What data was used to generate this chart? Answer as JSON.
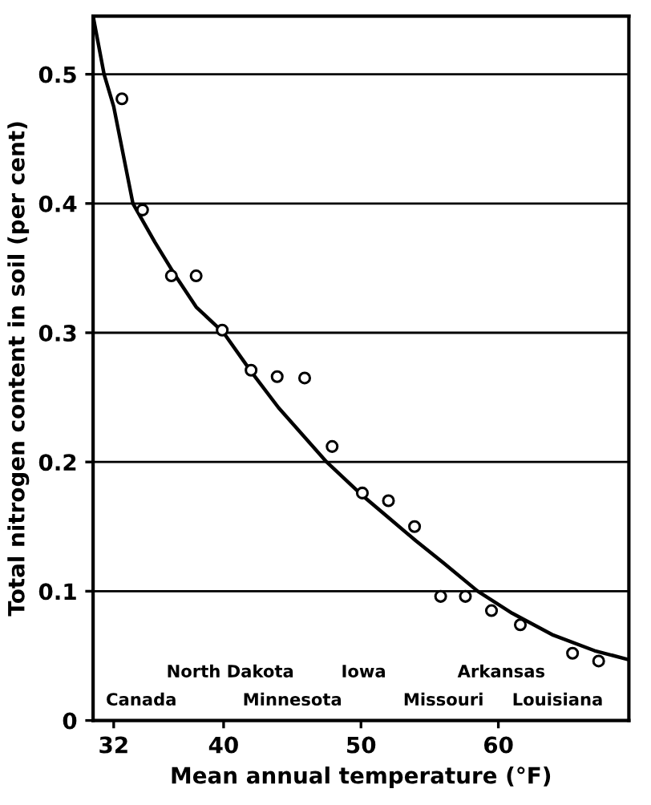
{
  "chart_data": {
    "type": "scatter",
    "xlabel": "Mean annual temperature (°F)",
    "ylabel": "Total nitrogen content in soil (per cent)",
    "xlim": [
      30.5,
      69.5
    ],
    "ylim": [
      0,
      0.545
    ],
    "xticks": [
      32,
      40,
      50,
      60
    ],
    "yticks": [
      0,
      0.1,
      0.2,
      0.3,
      0.4,
      0.5
    ],
    "grid": "y",
    "marker": "circle",
    "series": [
      {
        "color": "#000000",
        "x": [
          32.6,
          34.1,
          36.2,
          38.0,
          39.9,
          42.0,
          43.9,
          45.9,
          47.9,
          50.1,
          52.0,
          53.9,
          55.8,
          57.6,
          59.5,
          61.6,
          65.4,
          67.3
        ],
        "values": [
          0.481,
          0.395,
          0.344,
          0.344,
          0.302,
          0.271,
          0.266,
          0.265,
          0.212,
          0.176,
          0.17,
          0.15,
          0.096,
          0.096,
          0.085,
          0.074,
          0.052,
          0.046
        ]
      },
      {
        "type": "line",
        "color": "#000000",
        "marker": "none",
        "x": [
          30.5,
          31.3,
          32,
          33.4,
          35,
          36.5,
          38,
          40,
          42,
          44,
          47.5,
          50,
          52,
          54,
          56,
          58.5,
          61,
          64,
          67,
          69.5
        ],
        "values": [
          0.545,
          0.5,
          0.475,
          0.4,
          0.37,
          0.344,
          0.32,
          0.3,
          0.27,
          0.242,
          0.2,
          0.175,
          0.157,
          0.139,
          0.122,
          0.1,
          0.083,
          0.066,
          0.054,
          0.047
        ]
      }
    ],
    "annotations": [
      "Canada",
      "North Dakota",
      "Minnesota",
      "Iowa",
      "Missouri",
      "Arkansas",
      "Louisiana"
    ]
  }
}
